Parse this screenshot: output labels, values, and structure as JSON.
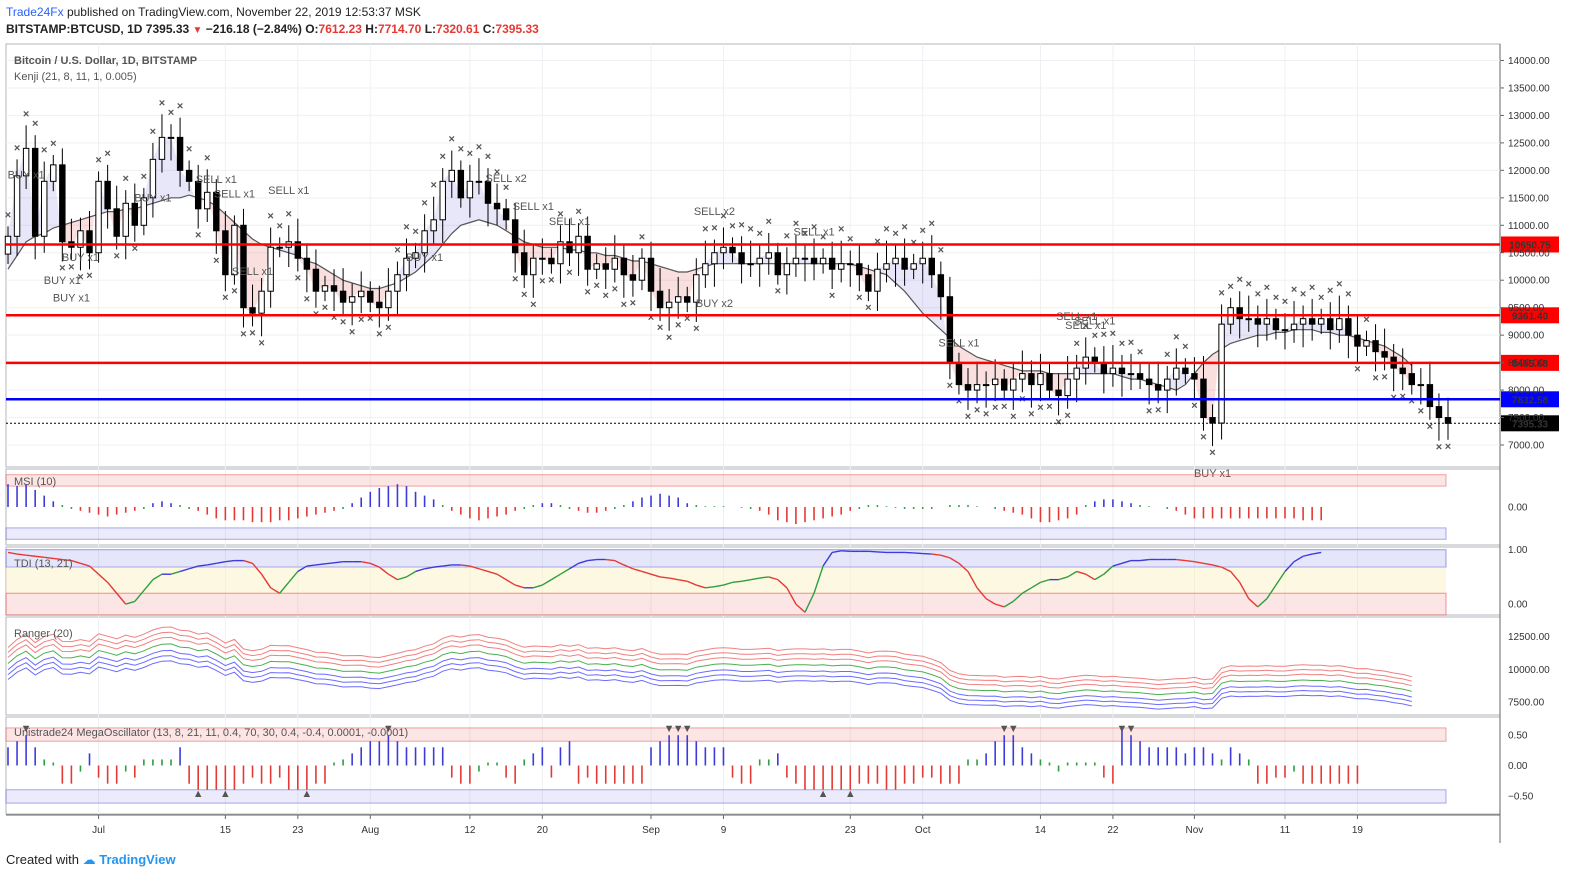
{
  "header": {
    "publisher": "Trade24Fx",
    "published_text": "published on TradingView.com, November 22, 2019 12:53:37 MSK",
    "symbol": "BITSTAMP:BTCUSD, 1D",
    "last": "7395.33",
    "change": "−216.18 (−2.84%)",
    "o_label": "O:",
    "o": "7612.23",
    "h_label": "H:",
    "h": "7714.70",
    "l_label": "L:",
    "l": "7320.61",
    "c_label": "C:",
    "c": "7395.33"
  },
  "footer": {
    "created_with": "Created with",
    "logo_text": "TradingView"
  },
  "colors": {
    "up": "#ffffff",
    "down": "#000000",
    "red_line": "#ff0000",
    "blue_line": "#0000ff",
    "buy": "#5b5bd6",
    "sell": "#e53935",
    "accent": "#2962ff"
  },
  "chart_data": [
    {
      "type": "candlestick",
      "title": "Bitcoin / U.S. Dollar, 1D, BITSTAMP",
      "indicator": "Kenji (21, 8, 11, 1, 0.005)",
      "ylim": [
        6600,
        14300
      ],
      "y_ticks": [
        7000,
        7500,
        8000,
        8500,
        9000,
        9500,
        10000,
        10500,
        11000,
        11500,
        12000,
        12500,
        13000,
        13500,
        14000
      ],
      "y_tick_labels": [
        "7000.00",
        "7500.00",
        "8000.00",
        "8500.00",
        "9000.00",
        "9500.00",
        "10000.00",
        "10500.00",
        "11000.00",
        "11500.00",
        "12000.00",
        "12500.00",
        "13000.00",
        "13500.00",
        "14000.00"
      ],
      "x_ticks": [
        {
          "day": 10,
          "label": "Jul"
        },
        {
          "day": 24,
          "label": "15"
        },
        {
          "day": 32,
          "label": "23"
        },
        {
          "day": 40,
          "label": "Aug"
        },
        {
          "day": 51,
          "label": "12"
        },
        {
          "day": 59,
          "label": "20"
        },
        {
          "day": 71,
          "label": "Sep"
        },
        {
          "day": 79,
          "label": "9"
        },
        {
          "day": 93,
          "label": "23"
        },
        {
          "day": 101,
          "label": "Oct"
        },
        {
          "day": 114,
          "label": "14"
        },
        {
          "day": 122,
          "label": "22"
        },
        {
          "day": 131,
          "label": "Nov"
        },
        {
          "day": 141,
          "label": "11"
        },
        {
          "day": 149,
          "label": "19"
        }
      ],
      "horizontal_levels": [
        {
          "value": 10650.75,
          "label": "10650.75",
          "color": "#ff0000"
        },
        {
          "value": 9361.4,
          "label": "9361.40",
          "color": "#ff0000"
        },
        {
          "value": 8495.68,
          "label": "8495.68",
          "color": "#ff0000"
        },
        {
          "value": 7832.58,
          "label": "7832.58",
          "color": "#0000ff"
        },
        {
          "value": 7395.33,
          "label": "7395.33",
          "color": "#000000"
        }
      ],
      "close": [
        10800,
        11900,
        12400,
        10800,
        11800,
        12100,
        10700,
        10600,
        10900,
        10500,
        11800,
        11300,
        10800,
        11400,
        11000,
        11500,
        12200,
        12600,
        12600,
        12000,
        11800,
        11300,
        11600,
        10900,
        10100,
        11000,
        9500,
        9400,
        9800,
        10600,
        10600,
        10700,
        10400,
        10200,
        9800,
        9900,
        9800,
        9600,
        9700,
        9800,
        9600,
        9500,
        9800,
        10100,
        10400,
        10500,
        10900,
        11100,
        11800,
        12000,
        11500,
        11800,
        11800,
        11400,
        11300,
        11100,
        10500,
        10100,
        10400,
        10400,
        10300,
        10700,
        10500,
        10800,
        10200,
        10300,
        10200,
        10400,
        10100,
        10000,
        10400,
        9800,
        9500,
        9600,
        9700,
        9600,
        10100,
        10300,
        10500,
        10600,
        10500,
        10300,
        10300,
        10400,
        10500,
        10100,
        10300,
        10400,
        10400,
        10300,
        10400,
        10200,
        10300,
        10300,
        10100,
        9800,
        10200,
        10300,
        10400,
        10200,
        10300,
        10400,
        10100,
        9700,
        8500,
        8100,
        8000,
        8100,
        8100,
        8200,
        8000,
        8200,
        8300,
        8100,
        8300,
        8000,
        7900,
        8200,
        8400,
        8600,
        8500,
        8300,
        8400,
        8300,
        8300,
        8200,
        8100,
        8000,
        8200,
        8400,
        8300,
        8200,
        7500,
        7400,
        9200,
        9500,
        9300,
        9300,
        9200,
        9300,
        9100,
        9100,
        9200,
        9300,
        9200,
        9300,
        9100,
        9300,
        9000,
        8800,
        8900,
        8700,
        8600,
        8400,
        8300,
        8100,
        8100,
        7700,
        7500,
        7395
      ],
      "kenji_line": [
        10200,
        10450,
        10700,
        10800,
        10850,
        10950,
        11000,
        11050,
        11100,
        11150,
        11200,
        11250,
        11250,
        11300,
        11300,
        11350,
        11400,
        11450,
        11500,
        11500,
        11550,
        11500,
        11450,
        11350,
        11200,
        11050,
        10900,
        10750,
        10650,
        10600,
        10550,
        10500,
        10450,
        10350,
        10300,
        10200,
        10100,
        10000,
        9950,
        9900,
        9850,
        9850,
        9900,
        9950,
        10050,
        10150,
        10300,
        10450,
        10650,
        10850,
        11000,
        11050,
        11100,
        11050,
        11000,
        10900,
        10800,
        10700,
        10650,
        10600,
        10600,
        10600,
        10550,
        10550,
        10500,
        10500,
        10450,
        10450,
        10400,
        10350,
        10350,
        10300,
        10250,
        10200,
        10150,
        10150,
        10200,
        10250,
        10300,
        10300,
        10300,
        10300,
        10300,
        10300,
        10300,
        10300,
        10300,
        10300,
        10300,
        10300,
        10300,
        10300,
        10300,
        10300,
        10250,
        10200,
        10150,
        10100,
        9950,
        9800,
        9600,
        9400,
        9250,
        9100,
        8950,
        8800,
        8700,
        8600,
        8550,
        8500,
        8450,
        8400,
        8350,
        8350,
        8350,
        8300,
        8300,
        8300,
        8300,
        8300,
        8300,
        8300,
        8300,
        8250,
        8200,
        8200,
        8150,
        8100,
        8050,
        8000,
        8100,
        8300,
        8500,
        8650,
        8750,
        8850,
        8900,
        8950,
        9000,
        9000,
        9050,
        9050,
        9100,
        9100,
        9100,
        9050,
        9050,
        9000,
        9000,
        8950,
        8900,
        8850,
        8800,
        8700,
        8600,
        8450
      ],
      "annotations": [
        {
          "day": 2,
          "text": "BUY x1",
          "kind": "buy"
        },
        {
          "day": 6,
          "text": "BUY x1",
          "kind": "buy"
        },
        {
          "day": 7,
          "text": "BUY x1",
          "kind": "buy"
        },
        {
          "day": 8,
          "text": "BUY x1",
          "kind": "buy"
        },
        {
          "day": 16,
          "text": "BUY x1",
          "kind": "buy"
        },
        {
          "day": 23,
          "text": "SELL x1",
          "kind": "sell"
        },
        {
          "day": 25,
          "text": "SELL x1",
          "kind": "sell"
        },
        {
          "day": 27,
          "text": "SELL x1",
          "kind": "sell"
        },
        {
          "day": 31,
          "text": "SELL x1",
          "kind": "sell"
        },
        {
          "day": 46,
          "text": "BUY x1",
          "kind": "buy"
        },
        {
          "day": 55,
          "text": "SELL x2",
          "kind": "sell"
        },
        {
          "day": 58,
          "text": "SELL x1",
          "kind": "sell"
        },
        {
          "day": 62,
          "text": "SELL x1",
          "kind": "sell"
        },
        {
          "day": 78,
          "text": "SELL x2",
          "kind": "sell"
        },
        {
          "day": 78,
          "text": "BUY x2",
          "kind": "buy"
        },
        {
          "day": 89,
          "text": "SELL x1",
          "kind": "sell"
        },
        {
          "day": 105,
          "text": "SELL x1",
          "kind": "sell"
        },
        {
          "day": 118,
          "text": "SELL x1",
          "kind": "sell"
        },
        {
          "day": 119,
          "text": "SELL x1",
          "kind": "sell"
        },
        {
          "day": 120,
          "text": "SELL x1",
          "kind": "sell"
        },
        {
          "day": 133,
          "text": "BUY x1",
          "kind": "buy"
        }
      ]
    },
    {
      "type": "bar",
      "title": "MSI (10)",
      "ylim": [
        -1.0,
        1.0
      ],
      "y_ticks": [
        0
      ],
      "y_tick_labels": [
        "0.00"
      ],
      "values": [
        0.6,
        0.55,
        0.6,
        0.45,
        0.3,
        0.15,
        0.05,
        -0.05,
        -0.1,
        -0.15,
        -0.2,
        -0.25,
        -0.2,
        -0.15,
        -0.1,
        -0.05,
        0.1,
        0.15,
        0.1,
        0.05,
        -0.05,
        -0.1,
        -0.2,
        -0.3,
        -0.35,
        -0.35,
        -0.35,
        -0.4,
        -0.4,
        -0.4,
        -0.35,
        -0.35,
        -0.3,
        -0.25,
        -0.2,
        -0.15,
        -0.1,
        -0.05,
        0.1,
        0.25,
        0.4,
        0.5,
        0.55,
        0.6,
        0.55,
        0.4,
        0.3,
        0.2,
        0.05,
        -0.1,
        -0.2,
        -0.3,
        -0.35,
        -0.3,
        -0.25,
        -0.2,
        -0.1,
        -0.05,
        0.05,
        0.1,
        0.1,
        0.05,
        -0.05,
        -0.1,
        -0.15,
        -0.15,
        -0.1,
        -0.05,
        0.05,
        0.15,
        0.25,
        0.3,
        0.35,
        0.3,
        0.25,
        0.1,
        0.05,
        0.02,
        0.02,
        0.02,
        0.0,
        -0.02,
        -0.05,
        -0.1,
        -0.2,
        -0.35,
        -0.4,
        -0.45,
        -0.4,
        -0.35,
        -0.3,
        -0.25,
        -0.2,
        -0.1,
        -0.05,
        0.05,
        0.05,
        0.02,
        -0.02,
        -0.05,
        -0.05,
        -0.05,
        -0.05,
        0.0,
        0.05,
        0.05,
        0.05,
        0.02,
        0.0,
        -0.05,
        -0.1,
        -0.15,
        -0.2,
        -0.3,
        -0.4,
        -0.4,
        -0.35,
        -0.3,
        -0.2,
        0.05,
        0.15,
        0.2,
        0.2,
        0.15,
        0.1,
        0.05,
        0.02,
        0.0,
        -0.05,
        -0.1,
        -0.2,
        -0.3,
        -0.3,
        -0.3,
        -0.3,
        -0.3,
        -0.3,
        -0.3,
        -0.3,
        -0.3,
        -0.3,
        -0.3,
        -0.3,
        -0.35,
        -0.35,
        -0.35
      ]
    },
    {
      "type": "line",
      "title": "TDI (13, 21)",
      "ylim": [
        -0.2,
        1.05
      ],
      "y_ticks": [
        0,
        1
      ],
      "y_tick_labels": [
        "0.00",
        "1.00"
      ],
      "values": [
        0.95,
        0.92,
        0.9,
        0.88,
        0.86,
        0.84,
        0.82,
        0.8,
        0.75,
        0.7,
        0.55,
        0.4,
        0.2,
        0.0,
        0.05,
        0.25,
        0.45,
        0.55,
        0.55,
        0.6,
        0.65,
        0.7,
        0.72,
        0.75,
        0.78,
        0.8,
        0.8,
        0.75,
        0.55,
        0.3,
        0.2,
        0.4,
        0.6,
        0.7,
        0.72,
        0.74,
        0.76,
        0.78,
        0.78,
        0.78,
        0.75,
        0.68,
        0.55,
        0.45,
        0.5,
        0.6,
        0.65,
        0.68,
        0.7,
        0.72,
        0.72,
        0.7,
        0.65,
        0.6,
        0.55,
        0.45,
        0.35,
        0.3,
        0.3,
        0.35,
        0.45,
        0.55,
        0.65,
        0.75,
        0.8,
        0.82,
        0.82,
        0.8,
        0.72,
        0.65,
        0.6,
        0.55,
        0.5,
        0.48,
        0.45,
        0.42,
        0.35,
        0.3,
        0.32,
        0.35,
        0.4,
        0.42,
        0.45,
        0.48,
        0.5,
        0.45,
        0.3,
        0.0,
        -0.15,
        0.2,
        0.7,
        0.95,
        0.98,
        0.97,
        0.97,
        0.97,
        0.96,
        0.95,
        0.95,
        0.95,
        0.94,
        0.93,
        0.92,
        0.9,
        0.85,
        0.75,
        0.6,
        0.3,
        0.1,
        0.0,
        -0.05,
        0.05,
        0.2,
        0.3,
        0.4,
        0.45,
        0.45,
        0.5,
        0.6,
        0.55,
        0.45,
        0.55,
        0.7,
        0.75,
        0.8,
        0.8,
        0.82,
        0.82,
        0.82,
        0.82,
        0.8,
        0.78,
        0.75,
        0.72,
        0.68,
        0.6,
        0.4,
        0.1,
        -0.05,
        0.1,
        0.35,
        0.6,
        0.78,
        0.88,
        0.92,
        0.95
      ]
    },
    {
      "type": "line",
      "title": "Ranger (20)",
      "ylim": [
        6500,
        14000
      ],
      "y_ticks": [
        7500,
        10000,
        12500
      ],
      "y_tick_labels": [
        "7500.00",
        "10000.00",
        "12500.00"
      ]
    },
    {
      "type": "bar",
      "title": "Unistrade24 MegaOscillator (13, 8, 21, 11, 0.4, 70, 30, 0.4, -0.4, 0.0001, -0.0001)",
      "ylim": [
        -0.8,
        0.8
      ],
      "y_ticks": [
        -0.5,
        0,
        0.5
      ],
      "y_tick_labels": [
        "−0.50",
        "0.00",
        "0.50"
      ],
      "values": [
        0.3,
        0.4,
        0.5,
        0.3,
        0.1,
        0.05,
        -0.3,
        -0.3,
        -0.1,
        0.2,
        -0.2,
        -0.3,
        -0.3,
        -0.1,
        -0.2,
        0.1,
        0.1,
        0.1,
        0.1,
        0.3,
        -0.3,
        -0.4,
        -0.4,
        -0.4,
        -0.4,
        -0.4,
        -0.3,
        -0.2,
        -0.3,
        -0.3,
        -0.2,
        -0.4,
        -0.4,
        -0.4,
        -0.3,
        -0.3,
        0.05,
        0.1,
        0.2,
        0.3,
        0.4,
        0.4,
        0.5,
        0.4,
        0.3,
        0.3,
        0.3,
        0.3,
        0.3,
        -0.2,
        -0.3,
        -0.3,
        -0.1,
        0.05,
        0.05,
        -0.2,
        -0.3,
        0.1,
        0.2,
        0.3,
        -0.2,
        0.3,
        0.4,
        -0.3,
        -0.2,
        -0.3,
        -0.3,
        -0.3,
        -0.3,
        -0.3,
        -0.3,
        0.3,
        0.4,
        0.5,
        0.5,
        0.5,
        0.4,
        0.3,
        0.3,
        0.3,
        -0.2,
        -0.3,
        -0.3,
        0.1,
        0.1,
        0.2,
        -0.2,
        -0.3,
        -0.4,
        -0.4,
        -0.4,
        -0.4,
        -0.4,
        -0.4,
        -0.3,
        -0.3,
        -0.3,
        -0.4,
        -0.4,
        -0.3,
        -0.3,
        -0.2,
        -0.2,
        -0.3,
        -0.3,
        -0.3,
        0.1,
        0.1,
        0.2,
        0.4,
        0.5,
        0.5,
        0.3,
        0.2,
        0.1,
        0.05,
        -0.1,
        0.05,
        0.05,
        0.05,
        0.05,
        -0.2,
        -0.3,
        0.6,
        0.5,
        0.4,
        0.3,
        0.3,
        0.3,
        0.3,
        0.2,
        0.3,
        0.3,
        0.2,
        0.1,
        0.3,
        0.2,
        0.1,
        -0.3,
        -0.3,
        -0.2,
        -0.2,
        -0.1,
        -0.3,
        -0.3,
        -0.3,
        -0.3,
        -0.3,
        -0.3,
        -0.3
      ]
    }
  ]
}
